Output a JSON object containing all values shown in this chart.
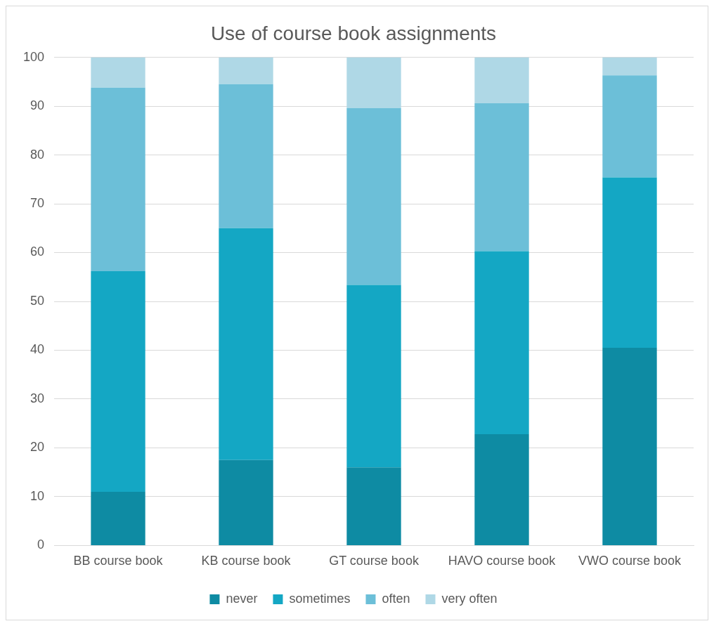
{
  "chart_data": {
    "type": "bar",
    "title": "Use of course book assignments",
    "stacked": true,
    "categories": [
      "BB course book",
      "KB course book",
      "GT course book",
      "HAVO course book",
      "VWO course book"
    ],
    "series": [
      {
        "name": "never",
        "color": "#0e8ba3",
        "values": [
          11,
          17.5,
          16,
          22.8,
          40.5
        ]
      },
      {
        "name": "sometimes",
        "color": "#14a7c4",
        "values": [
          45.2,
          47.5,
          37.4,
          37.5,
          34.9
        ]
      },
      {
        "name": "often",
        "color": "#6cbfd8",
        "values": [
          37.6,
          29.5,
          36.2,
          30.3,
          20.9
        ]
      },
      {
        "name": "very often",
        "color": "#afd8e6",
        "values": [
          6.2,
          5.5,
          10.4,
          9.4,
          3.7
        ]
      }
    ],
    "ylim": [
      0,
      100
    ],
    "yticks": [
      0,
      10,
      20,
      30,
      40,
      50,
      60,
      70,
      80,
      90,
      100
    ],
    "grid": "y",
    "legend": "bottom"
  }
}
